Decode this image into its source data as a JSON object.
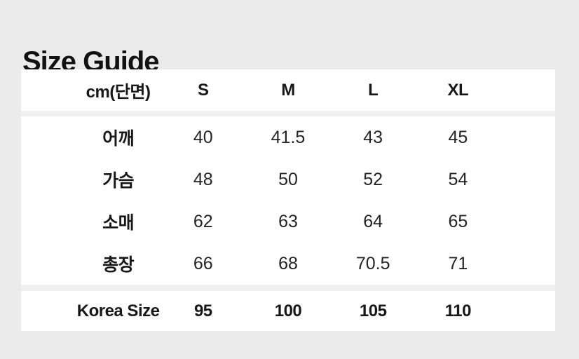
{
  "page": {
    "title": "Size Guide"
  },
  "colors": {
    "page_background": "#ebebeb",
    "table_band": "#ffffff",
    "divider": "#f0f0f0",
    "text": "#1c1c1c"
  },
  "size_chart": {
    "unit_label": "cm(단면)",
    "size_columns": [
      "S",
      "M",
      "L",
      "XL"
    ],
    "rows": [
      {
        "label": "어깨",
        "values": [
          "40",
          "41.5",
          "43",
          "45"
        ]
      },
      {
        "label": "가슴",
        "values": [
          "48",
          "50",
          "52",
          "54"
        ]
      },
      {
        "label": "소매",
        "values": [
          "62",
          "63",
          "64",
          "65"
        ]
      },
      {
        "label": "총장",
        "values": [
          "66",
          "68",
          "70.5",
          "71"
        ]
      }
    ],
    "korea_size_row": {
      "label": "Korea Size",
      "values": [
        "95",
        "100",
        "105",
        "110"
      ]
    }
  }
}
